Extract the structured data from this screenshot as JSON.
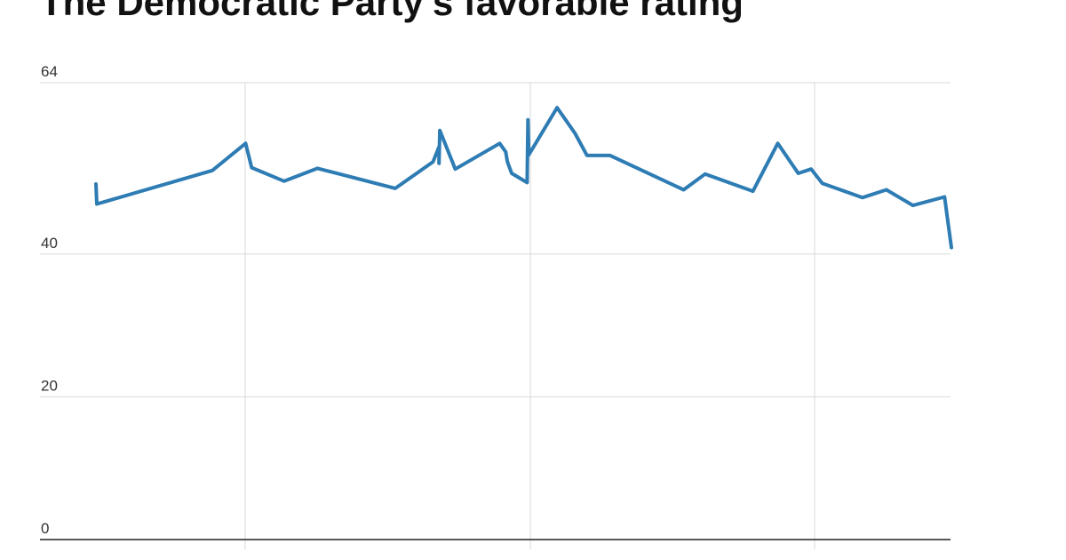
{
  "chart_data": {
    "type": "line",
    "title": "The Democratic Party's favorable rating",
    "xlabel": "",
    "ylabel": "",
    "ylim": [
      0,
      64
    ],
    "y_ticks": [
      0,
      20,
      40,
      64
    ],
    "grid": true,
    "vertical_gridlines": 3,
    "series_color": "#2e7cb4",
    "series": [
      {
        "name": "",
        "values": [
          49.8,
          47.0,
          51.7,
          55.5,
          52.1,
          50.2,
          52.0,
          49.2,
          52.9,
          55.0,
          52.7,
          57.3,
          51.9,
          55.5,
          54.3,
          52.9,
          51.3,
          50.0,
          58.8,
          53.9,
          60.5,
          56.9,
          53.8,
          53.8,
          49.0,
          51.2,
          48.8,
          55.5,
          51.3,
          51.9,
          49.9,
          47.9,
          49.0,
          46.8,
          48.0,
          40.9
        ]
      }
    ]
  }
}
